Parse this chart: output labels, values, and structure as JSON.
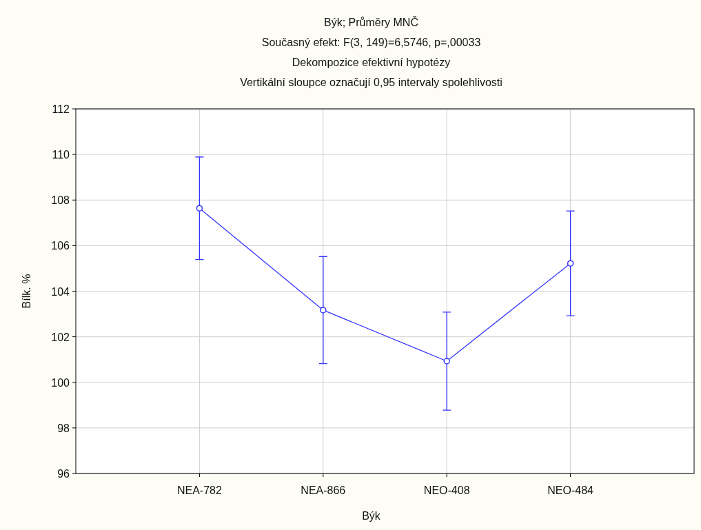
{
  "chart_data": {
    "type": "line",
    "title": "Býk; Průměry MNČ",
    "subtitle": "Současný efekt: F(3, 149)=6,5746, p=,00033",
    "annotations": [
      "Dekompozice efektivní hypotézy",
      "Vertikální sloupce označují 0,95 intervaly spolehlivosti"
    ],
    "xlabel": "Býk",
    "ylabel": "Bílk. %",
    "categories": [
      "NEA-782",
      "NEA-866",
      "NEO-408",
      "NEO-484"
    ],
    "series": [
      {
        "color": "#3535ff",
        "values": [
          107.64,
          103.17,
          100.93,
          105.22
        ],
        "errors": [
          2.25,
          2.35,
          2.15,
          2.3
        ]
      }
    ],
    "ylim": [
      96,
      112
    ],
    "yticks": [
      96,
      98,
      100,
      102,
      104,
      106,
      108,
      110,
      112
    ],
    "grid": true,
    "marker": "circle",
    "line_style": "solid"
  }
}
